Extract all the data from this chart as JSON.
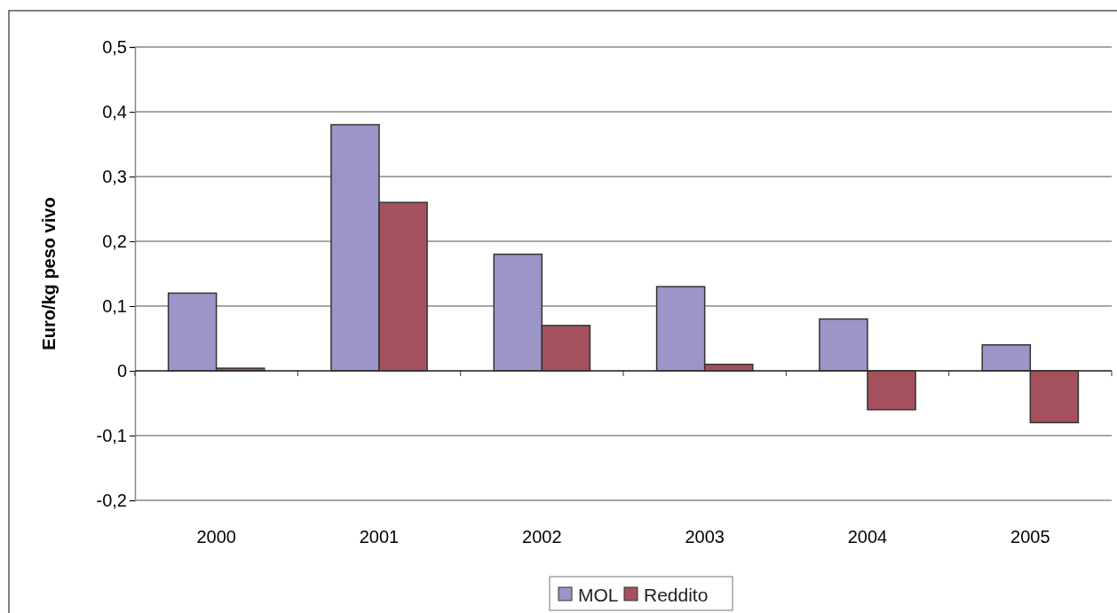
{
  "chart_data": {
    "type": "bar",
    "ylabel": "Euro/kg peso vivo",
    "categories": [
      "2000",
      "2001",
      "2002",
      "2003",
      "2004",
      "2005"
    ],
    "series": [
      {
        "name": "MOL",
        "color": "#9b95c8",
        "values": [
          0.12,
          0.38,
          0.18,
          0.13,
          0.08,
          0.04
        ]
      },
      {
        "name": "Reddito",
        "color": "#a4505d",
        "values": [
          0.004,
          0.26,
          0.07,
          0.01,
          -0.06,
          -0.08
        ]
      }
    ],
    "ylim": [
      -0.2,
      0.5
    ],
    "yticks": [
      {
        "value": -0.2,
        "label": "-0,2"
      },
      {
        "value": -0.1,
        "label": "-0,1"
      },
      {
        "value": 0,
        "label": "0"
      },
      {
        "value": 0.1,
        "label": "0,1"
      },
      {
        "value": 0.2,
        "label": "0,2"
      },
      {
        "value": 0.3,
        "label": "0,3"
      },
      {
        "value": 0.4,
        "label": "0,4"
      },
      {
        "value": 0.5,
        "label": "0,5"
      }
    ],
    "grid": "y",
    "legend": "bottom"
  }
}
